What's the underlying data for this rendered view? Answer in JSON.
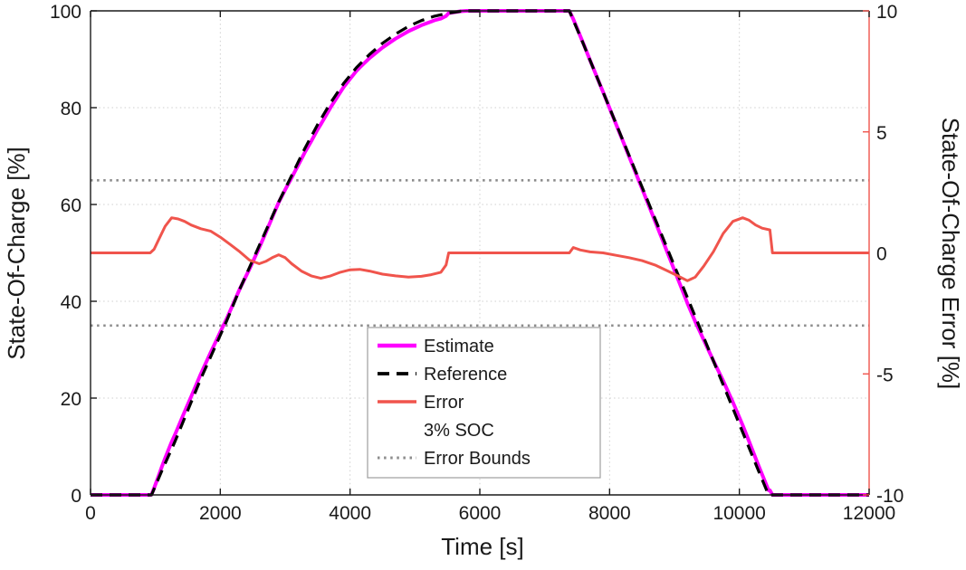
{
  "figure": {
    "background": "#ffffff"
  },
  "chart_data": {
    "type": "line",
    "title": "",
    "xlabel": "Time [s]",
    "ylabel_left": "State-Of-Charge [%]",
    "ylabel_right": "State-Of-Charge Error [%]",
    "xlim": [
      0,
      12000
    ],
    "ylim_left": [
      0,
      100
    ],
    "ylim_right": [
      -10,
      10
    ],
    "xticks": [
      0,
      2000,
      4000,
      6000,
      8000,
      10000,
      12000
    ],
    "yticks_left": [
      0,
      20,
      40,
      60,
      80,
      100
    ],
    "yticks_right": [
      -10,
      -5,
      0,
      5,
      10
    ],
    "grid": true,
    "grid_style": "dotted",
    "grid_color": "#cfcfcf",
    "axis_color": "#1a1a1a",
    "right_axis_color": "#f0544c",
    "legend_border_color": "#9e9e9e",
    "series": [
      {
        "name": "Estimate",
        "axis": "left",
        "color": "#ff00ff",
        "style": "solid",
        "width": 4,
        "layer": 1,
        "derived": "reference_plus_error",
        "note": "Estimate visually overlays Reference; equals Reference plus Error (% SOC)"
      },
      {
        "name": "Reference",
        "axis": "left",
        "color": "#000000",
        "style": "dashed",
        "width": 3.2,
        "layer": 2,
        "points": [
          [
            0,
            0
          ],
          [
            940,
            0
          ],
          [
            1100,
            5
          ],
          [
            1300,
            11
          ],
          [
            1500,
            17.5
          ],
          [
            1700,
            24
          ],
          [
            1900,
            30
          ],
          [
            2100,
            36
          ],
          [
            2300,
            42.5
          ],
          [
            2500,
            48.5
          ],
          [
            2700,
            54.5
          ],
          [
            2900,
            60.5
          ],
          [
            3100,
            66
          ],
          [
            3300,
            71.5
          ],
          [
            3500,
            76.5
          ],
          [
            3700,
            81
          ],
          [
            3900,
            85
          ],
          [
            4100,
            88.3
          ],
          [
            4300,
            91
          ],
          [
            4500,
            93.3
          ],
          [
            4700,
            95.2
          ],
          [
            4900,
            96.8
          ],
          [
            5100,
            98
          ],
          [
            5300,
            98.9
          ],
          [
            5500,
            99.5
          ],
          [
            5700,
            99.9
          ],
          [
            5800,
            100
          ],
          [
            7380,
            100
          ],
          [
            7600,
            93
          ],
          [
            7900,
            83.2
          ],
          [
            8200,
            73.4
          ],
          [
            8500,
            63.6
          ],
          [
            8800,
            53.8
          ],
          [
            9100,
            44
          ],
          [
            9400,
            34.2
          ],
          [
            9700,
            24.4
          ],
          [
            10000,
            14.6
          ],
          [
            10300,
            4.8
          ],
          [
            10450,
            0
          ],
          [
            12000,
            0
          ]
        ]
      },
      {
        "name": "Error",
        "axis": "right",
        "color": "#f0544c",
        "style": "solid",
        "width": 3,
        "layer": 3,
        "points": [
          [
            0,
            0
          ],
          [
            920,
            0
          ],
          [
            980,
            0.15
          ],
          [
            1050,
            0.55
          ],
          [
            1150,
            1.1
          ],
          [
            1250,
            1.45
          ],
          [
            1350,
            1.4
          ],
          [
            1450,
            1.3
          ],
          [
            1550,
            1.15
          ],
          [
            1700,
            1.0
          ],
          [
            1850,
            0.9
          ],
          [
            2000,
            0.65
          ],
          [
            2150,
            0.35
          ],
          [
            2300,
            0.05
          ],
          [
            2450,
            -0.3
          ],
          [
            2600,
            -0.45
          ],
          [
            2700,
            -0.35
          ],
          [
            2800,
            -0.2
          ],
          [
            2900,
            -0.08
          ],
          [
            3000,
            -0.2
          ],
          [
            3100,
            -0.45
          ],
          [
            3250,
            -0.75
          ],
          [
            3400,
            -0.95
          ],
          [
            3550,
            -1.05
          ],
          [
            3700,
            -0.95
          ],
          [
            3850,
            -0.8
          ],
          [
            4000,
            -0.7
          ],
          [
            4150,
            -0.68
          ],
          [
            4300,
            -0.75
          ],
          [
            4500,
            -0.88
          ],
          [
            4700,
            -0.95
          ],
          [
            4900,
            -1.0
          ],
          [
            5100,
            -0.97
          ],
          [
            5250,
            -0.9
          ],
          [
            5400,
            -0.8
          ],
          [
            5480,
            -0.5
          ],
          [
            5520,
            0
          ],
          [
            7380,
            0
          ],
          [
            7440,
            0.22
          ],
          [
            7550,
            0.12
          ],
          [
            7700,
            0.04
          ],
          [
            7900,
            0
          ],
          [
            8100,
            -0.1
          ],
          [
            8300,
            -0.2
          ],
          [
            8500,
            -0.32
          ],
          [
            8700,
            -0.5
          ],
          [
            8900,
            -0.75
          ],
          [
            9050,
            -0.95
          ],
          [
            9200,
            -1.15
          ],
          [
            9320,
            -1.0
          ],
          [
            9450,
            -0.55
          ],
          [
            9600,
            0.05
          ],
          [
            9750,
            0.8
          ],
          [
            9900,
            1.3
          ],
          [
            10050,
            1.45
          ],
          [
            10150,
            1.35
          ],
          [
            10250,
            1.15
          ],
          [
            10350,
            1.02
          ],
          [
            10470,
            0.95
          ],
          [
            10510,
            0
          ],
          [
            12000,
            0
          ]
        ]
      },
      {
        "name": "3% SOC Error Bounds",
        "axis": "right",
        "color": "#8c8c8c",
        "style": "dotted",
        "width": 2.6,
        "layer": 0,
        "points": [
          [
            0,
            3
          ],
          [
            12000,
            3
          ]
        ]
      },
      {
        "name": "3% SOC Error Bounds",
        "axis": "right",
        "color": "#8c8c8c",
        "style": "dotted",
        "width": 2.6,
        "layer": 0,
        "points": [
          [
            0,
            -3
          ],
          [
            12000,
            -3
          ]
        ]
      }
    ],
    "legend": {
      "position": "inside-bottom-center",
      "entries": [
        {
          "series_index": 0,
          "lines": [
            "Estimate"
          ]
        },
        {
          "series_index": 1,
          "lines": [
            "Reference"
          ]
        },
        {
          "series_index": 2,
          "lines": [
            "Error"
          ]
        },
        {
          "series_index": 3,
          "lines": [
            "3% SOC",
            "Error Bounds"
          ]
        }
      ]
    }
  }
}
